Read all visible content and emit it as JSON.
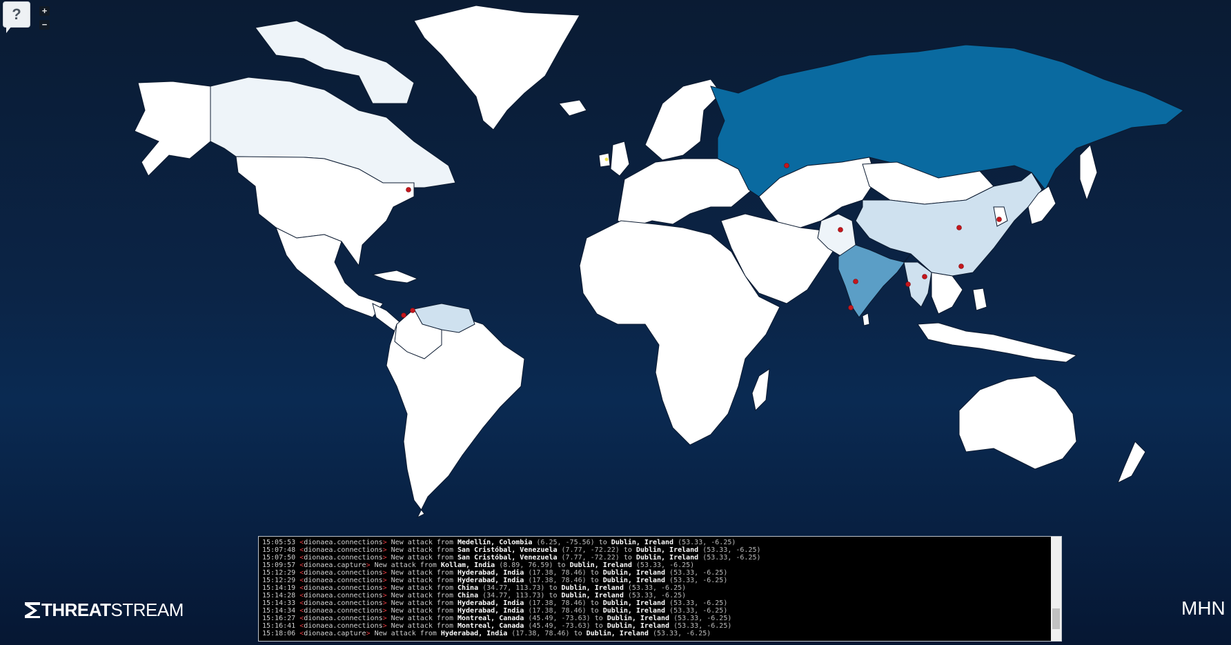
{
  "controls": {
    "help_label": "?",
    "zoom_in_label": "+",
    "zoom_out_label": "−"
  },
  "colors": {
    "ocean": "#0b2446",
    "land_default": "#ffffff",
    "land_light": "#eef4f9",
    "land_medium": "#cfe1ef",
    "russia": "#0a6aa0",
    "india": "#5b9ec6",
    "attack_dot": "#c4161c",
    "target_dot": "#f2e34c"
  },
  "logo": {
    "bold": "THREAT",
    "regular": "STREAM",
    "icon": "threatstream-s-icon"
  },
  "brand_right": "MHN",
  "log": [
    {
      "time": "15:05:53",
      "sensor": "dionaea.connections",
      "src": "Medellín, Colombia",
      "src_coords": "(6.25, -75.56)",
      "dst": "Dublin, Ireland",
      "dst_coords": "(53.33, -6.25)"
    },
    {
      "time": "15:07:48",
      "sensor": "dionaea.connections",
      "src": "San Cristóbal, Venezuela",
      "src_coords": "(7.77, -72.22)",
      "dst": "Dublin, Ireland",
      "dst_coords": "(53.33, -6.25)"
    },
    {
      "time": "15:07:50",
      "sensor": "dionaea.connections",
      "src": "San Cristóbal, Venezuela",
      "src_coords": "(7.77, -72.22)",
      "dst": "Dublin, Ireland",
      "dst_coords": "(53.33, -6.25)"
    },
    {
      "time": "15:09:57",
      "sensor": "dionaea.capture",
      "src": "Kollam, India",
      "src_coords": "(8.89, 76.59)",
      "dst": "Dublin, Ireland",
      "dst_coords": "(53.33, -6.25)"
    },
    {
      "time": "15:12:29",
      "sensor": "dionaea.connections",
      "src": "Hyderabad, India",
      "src_coords": "(17.38, 78.46)",
      "dst": "Dublin, Ireland",
      "dst_coords": "(53.33, -6.25)"
    },
    {
      "time": "15:12:29",
      "sensor": "dionaea.connections",
      "src": "Hyderabad, India",
      "src_coords": "(17.38, 78.46)",
      "dst": "Dublin, Ireland",
      "dst_coords": "(53.33, -6.25)"
    },
    {
      "time": "15:14:19",
      "sensor": "dionaea.connections",
      "src": "China",
      "src_coords": "(34.77, 113.73)",
      "dst": "Dublin, Ireland",
      "dst_coords": "(53.33, -6.25)"
    },
    {
      "time": "15:14:28",
      "sensor": "dionaea.connections",
      "src": "China",
      "src_coords": "(34.77, 113.73)",
      "dst": "Dublin, Ireland",
      "dst_coords": "(53.33, -6.25)"
    },
    {
      "time": "15:14:33",
      "sensor": "dionaea.connections",
      "src": "Hyderabad, India",
      "src_coords": "(17.38, 78.46)",
      "dst": "Dublin, Ireland",
      "dst_coords": "(53.33, -6.25)"
    },
    {
      "time": "15:14:34",
      "sensor": "dionaea.connections",
      "src": "Hyderabad, India",
      "src_coords": "(17.38, 78.46)",
      "dst": "Dublin, Ireland",
      "dst_coords": "(53.33, -6.25)"
    },
    {
      "time": "15:16:27",
      "sensor": "dionaea.connections",
      "src": "Montreal, Canada",
      "src_coords": "(45.49, -73.63)",
      "dst": "Dublin, Ireland",
      "dst_coords": "(53.33, -6.25)"
    },
    {
      "time": "15:16:41",
      "sensor": "dionaea.connections",
      "src": "Montreal, Canada",
      "src_coords": "(45.49, -73.63)",
      "dst": "Dublin, Ireland",
      "dst_coords": "(53.33, -6.25)"
    },
    {
      "time": "15:18:06",
      "sensor": "dionaea.capture",
      "src": "Hyderabad, India",
      "src_coords": "(17.38, 78.46)",
      "dst": "Dublin, Ireland",
      "dst_coords": "(53.33, -6.25)"
    }
  ],
  "log_text": {
    "prefix": "<",
    "suffix": ">",
    "new_attack": "New attack from",
    "to": "to"
  }
}
